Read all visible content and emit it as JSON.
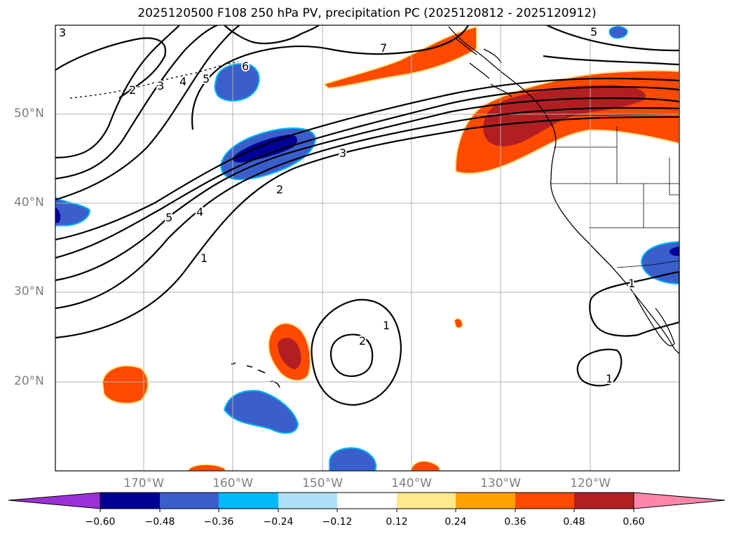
{
  "title": "2025120500 F108 250 hPa PV, precipitation PC (2025120812 - 2025120912)",
  "map": {
    "lat_labels": [
      "50°N",
      "40°N",
      "30°N",
      "20°N"
    ],
    "lon_labels": [
      "170°W",
      "160°W",
      "150°W",
      "140°W",
      "130°W",
      "120°W"
    ],
    "pv_contour_labels": [
      "3",
      "2",
      "3",
      "4",
      "5",
      "6",
      "7",
      "5",
      "3",
      "2",
      "5",
      "4",
      "1",
      "2",
      "1",
      "1",
      "1"
    ],
    "colors": {
      "neg_deep": "#000095",
      "neg_mid": "#3a5ecc",
      "neg_light": "#00b9f8",
      "pos_light": "#ffe98a",
      "pos_orange": "#ffa100",
      "pos_red": "#ff4a00",
      "pos_deep": "#b11f23"
    }
  },
  "colorbar": {
    "tick_labels": [
      "−0.60",
      "−0.48",
      "−0.36",
      "−0.24",
      "−0.12",
      "0.12",
      "0.24",
      "0.36",
      "0.48",
      "0.60"
    ],
    "colors": [
      "#9b30d7",
      "#000095",
      "#3a5ecc",
      "#00b9f8",
      "#aee0fa",
      "#ffffff",
      "#ffe98a",
      "#ffa100",
      "#ff4a00",
      "#b11f23",
      "#ff86a9"
    ]
  }
}
